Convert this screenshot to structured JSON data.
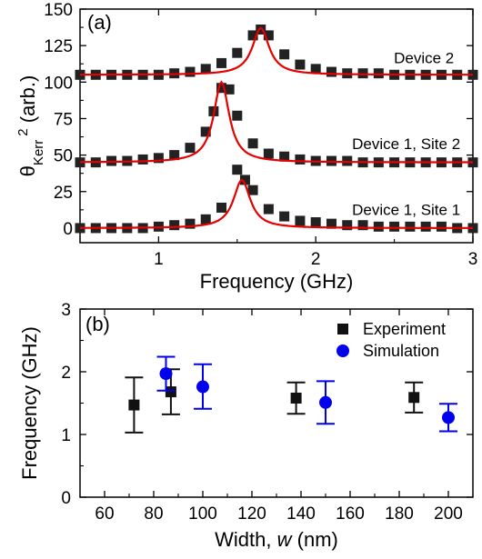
{
  "chart_data": [
    {
      "panel": "(a)",
      "type": "scatter",
      "xlabel": "Frequency (GHz)",
      "ylabel_main": "θ",
      "ylabel_sub": "Kerr",
      "ylabel_sup": "2",
      "ylabel_unit": " (arb.)",
      "xlim": [
        0.5,
        3.0
      ],
      "ylim": [
        -10,
        150
      ],
      "xticks": [
        1,
        2,
        3
      ],
      "yticks": [
        0,
        25,
        50,
        75,
        100,
        125,
        150
      ],
      "grid": false,
      "series": [
        {
          "name": "Device 2",
          "baseline": 105,
          "peak_x": 1.65,
          "peak_amp": 32,
          "width": 0.13,
          "label_x": 2.88,
          "label_y": 113,
          "x": [
            0.5,
            0.6,
            0.7,
            0.8,
            0.9,
            1.0,
            1.1,
            1.2,
            1.3,
            1.4,
            1.5,
            1.6,
            1.65,
            1.7,
            1.8,
            1.9,
            2.0,
            2.1,
            2.2,
            2.3,
            2.4,
            2.5,
            2.6,
            2.7,
            2.8,
            2.9,
            3.0
          ],
          "y": [
            105,
            105,
            105,
            105,
            105,
            105,
            106,
            107,
            109,
            113,
            120,
            132,
            136,
            132,
            119,
            112,
            109,
            107,
            106,
            106,
            106,
            105,
            105,
            105,
            105,
            105,
            105
          ]
        },
        {
          "name": "Device 1, Site 2",
          "baseline": 45,
          "peak_x": 1.4,
          "peak_amp": 55,
          "width": 0.12,
          "label_x": 2.92,
          "label_y": 54,
          "x": [
            0.5,
            0.6,
            0.7,
            0.8,
            0.9,
            1.0,
            1.1,
            1.2,
            1.3,
            1.35,
            1.4,
            1.45,
            1.5,
            1.6,
            1.7,
            1.8,
            1.9,
            2.0,
            2.1,
            2.2,
            2.3,
            2.4,
            2.5,
            2.6,
            2.7,
            2.8,
            2.9,
            3.0
          ],
          "y": [
            45,
            45,
            46,
            46,
            47,
            48,
            50,
            55,
            66,
            80,
            96,
            95,
            77,
            58,
            51,
            49,
            47,
            46,
            46,
            46,
            45,
            45,
            45,
            45,
            45,
            45,
            45,
            45
          ]
        },
        {
          "name": "Device 1, Site 1",
          "baseline": 0,
          "peak_x": 1.53,
          "peak_amp": 33,
          "width": 0.13,
          "label_x": 2.92,
          "label_y": 9,
          "x": [
            0.5,
            0.6,
            0.7,
            0.8,
            0.9,
            1.0,
            1.1,
            1.2,
            1.3,
            1.4,
            1.5,
            1.55,
            1.6,
            1.7,
            1.8,
            1.9,
            2.0,
            2.1,
            2.2,
            2.3,
            2.4,
            2.5,
            2.6,
            2.7,
            2.8,
            2.9,
            3.0
          ],
          "y": [
            0,
            0,
            0,
            0,
            0,
            1,
            2,
            3,
            6,
            14,
            40,
            33,
            26,
            13,
            8,
            5,
            4,
            3,
            2,
            2,
            1,
            1,
            1,
            1,
            1,
            0,
            0
          ]
        }
      ],
      "marker_color": "#222222",
      "fit_color": "#e60000"
    },
    {
      "panel": "(b)",
      "type": "scatter",
      "xlabel_prefix": "Width, ",
      "xlabel_var": "w",
      "xlabel_suffix": " (nm)",
      "ylabel": "Frequency (GHz)",
      "xlim": [
        50,
        210
      ],
      "ylim": [
        0,
        3
      ],
      "xticks": [
        60,
        80,
        100,
        120,
        140,
        160,
        180,
        200
      ],
      "yticks": [
        0,
        1,
        2,
        3
      ],
      "grid": false,
      "legend_position": "top-right",
      "series": [
        {
          "name": "Experiment",
          "marker": "square",
          "color": "#111111",
          "x": [
            72,
            87,
            138,
            186
          ],
          "y": [
            1.47,
            1.68,
            1.58,
            1.59
          ],
          "err_low": [
            1.03,
            1.32,
            1.33,
            1.35
          ],
          "err_high": [
            1.91,
            2.04,
            1.83,
            1.83
          ]
        },
        {
          "name": "Simulation",
          "marker": "circle",
          "color": "#0000ee",
          "x": [
            85,
            100,
            150,
            200
          ],
          "y": [
            1.97,
            1.76,
            1.51,
            1.27
          ],
          "err_low": [
            1.7,
            1.41,
            1.17,
            1.05
          ],
          "err_high": [
            2.24,
            2.12,
            1.85,
            1.49
          ]
        }
      ]
    }
  ]
}
